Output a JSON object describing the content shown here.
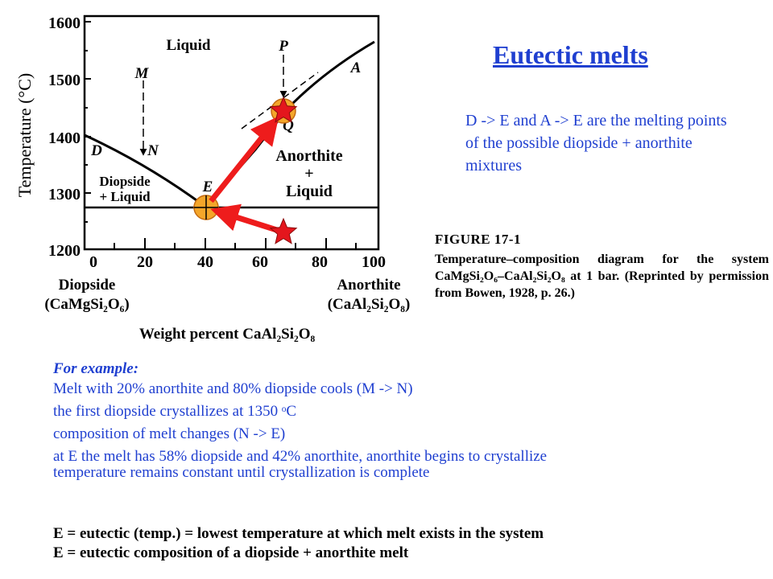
{
  "title": "Eutectic melts",
  "note": "D -> E and A -> E are the melting points of the possible diopside + anorthite mixtures",
  "caption": {
    "heading": "FIGURE 17-1",
    "body": "Temperature–composition diagram for the system CaMgSi₂O₆–CaAl₂Si₂O₈ at 1 bar. (Reprinted by permission from Bowen, 1928, p. 26.)"
  },
  "example": {
    "lead": "For example:",
    "lines": [
      "Melt with 20% anorthite and 80% diopside cools (M -> N)",
      "the first diopside crystallizes at 1350 ᵒC",
      "composition of melt changes (N -> E)",
      "at E the melt has 58% diopside and 42% anorthite, anorthite begins to crystallize",
      "temperature remains constant until crystallization is complete"
    ]
  },
  "definitions": [
    "E = eutectic (temp.) = lowest temperature at which melt exists in the system",
    "E = eutectic composition of a diopside + anorthite melt"
  ],
  "diagram": {
    "ylabel": "Temperature (°C)",
    "yticks": [
      "1600",
      "1500",
      "1400",
      "1300",
      "1200"
    ],
    "xticks": [
      "0",
      "20",
      "40",
      "60",
      "80",
      "100"
    ],
    "xlabel": "Weight percent CaAl₂Si₂O₈",
    "left_end": {
      "name": "Diopside",
      "formula": "(CaMgSi₂O₆)"
    },
    "right_end": {
      "name": "Anorthite",
      "formula": "(CaAl₂Si₂O₈)"
    },
    "fields": {
      "liquid": "Liquid",
      "diopside_liquid_1": "Diopside",
      "diopside_liquid_2": "+ Liquid",
      "anorthite_liquid_1": "Anorthite",
      "anorthite_liquid_2": "+",
      "anorthite_liquid_3": "Liquid"
    },
    "points": {
      "M": "M",
      "N": "N",
      "D": "D",
      "E": "E",
      "P": "P",
      "Q": "Q",
      "A": "A"
    },
    "colors": {
      "arrow": "#ee1c1c",
      "star": "#e4161d",
      "marker": "#f4a62a",
      "text_blue": "#1f3fd0"
    }
  }
}
